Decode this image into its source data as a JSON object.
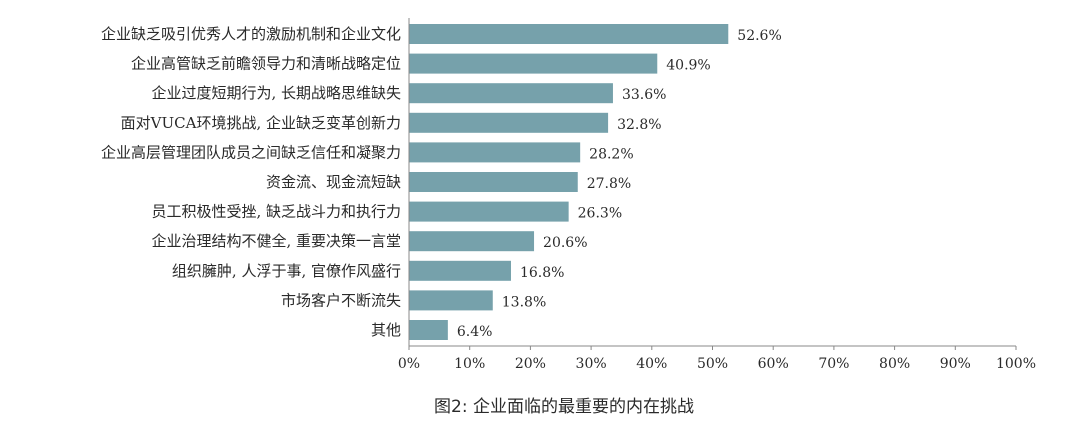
{
  "chart_data": {
    "type": "bar",
    "orientation": "horizontal",
    "title": "图2: 企业面临的最重要的内在挑战",
    "categories": [
      "企业缺乏吸引优秀人才的激励机制和企业文化",
      "企业高管缺乏前瞻领导力和清晰战略定位",
      "企业过度短期行为, 长期战略思维缺失",
      "面对VUCA环境挑战, 企业缺乏变革创新力",
      "企业高层管理团队成员之间缺乏信任和凝聚力",
      "资金流、现金流短缺",
      "员工积极性受挫, 缺乏战斗力和执行力",
      "企业治理结构不健全, 重要决策一言堂",
      "组织臃肿, 人浮于事, 官僚作风盛行",
      "市场客户不断流失",
      "其他"
    ],
    "values": [
      52.6,
      40.9,
      33.6,
      32.8,
      28.2,
      27.8,
      26.3,
      20.6,
      16.8,
      13.8,
      6.4
    ],
    "value_labels": [
      "52.6%",
      "40.9%",
      "33.6%",
      "32.8%",
      "28.2%",
      "27.8%",
      "26.3%",
      "20.6%",
      "16.8%",
      "13.8%",
      "6.4%"
    ],
    "xlim": [
      0,
      100
    ],
    "xticks": [
      "0%",
      "10%",
      "20%",
      "30%",
      "40%",
      "50%",
      "60%",
      "70%",
      "80%",
      "90%",
      "100%"
    ],
    "bar_color": "#76a1ab",
    "axis_color": "#888888",
    "grid": false,
    "legend": "none"
  }
}
